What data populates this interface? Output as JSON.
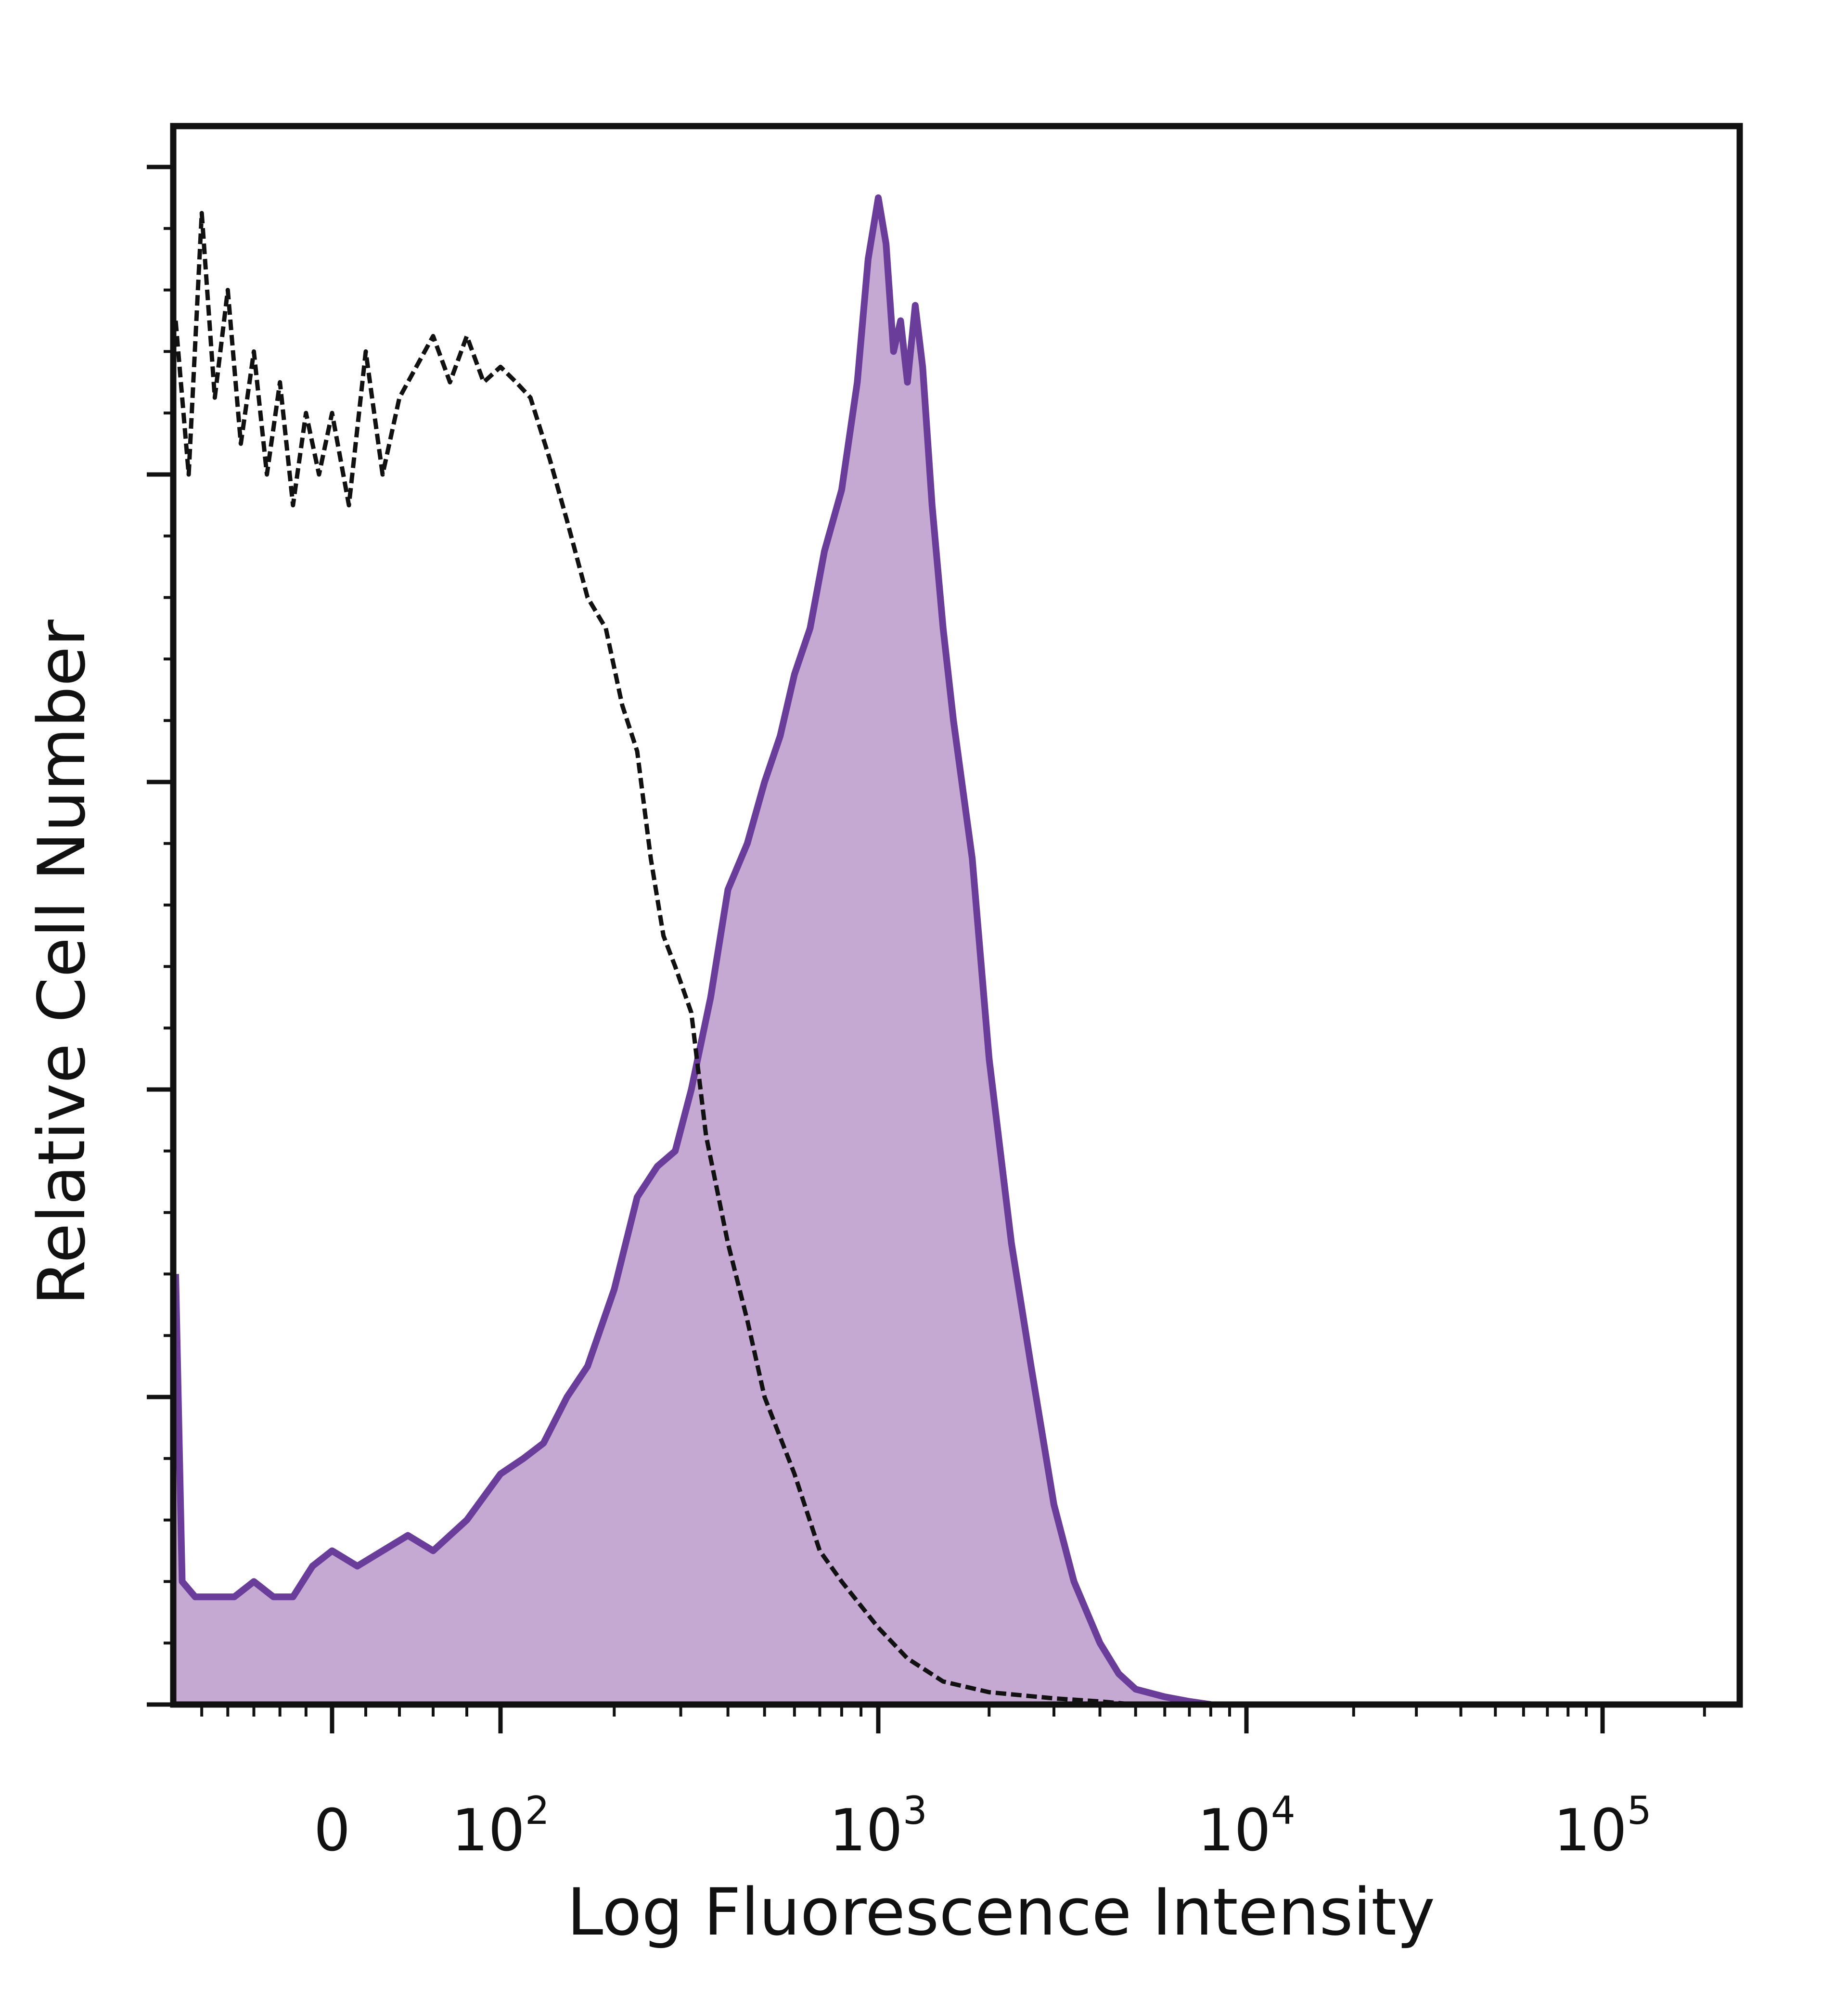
{
  "chart_data": {
    "type": "area",
    "title": "",
    "xlabel": "Log Fluorescence Intensity",
    "ylabel": "Relative Cell Number",
    "xscale": "biexponential (log)",
    "xlim": [
      -120,
      250000
    ],
    "ylim": [
      0,
      100
    ],
    "grid": false,
    "legend": "none",
    "x_ticks": [
      {
        "value": 0,
        "base": "0",
        "exp": ""
      },
      {
        "value": 100,
        "base": "10",
        "exp": "2"
      },
      {
        "value": 1000,
        "base": "10",
        "exp": "3"
      },
      {
        "value": 10000,
        "base": "10",
        "exp": "4"
      },
      {
        "value": 100000,
        "base": "10",
        "exp": "5"
      }
    ],
    "series": [
      {
        "style": "filled",
        "color": "#6a3d9a",
        "fill": "#c5a9d3",
        "x": [
          -120,
          -115,
          -105,
          -90,
          -75,
          -60,
          -45,
          -30,
          -15,
          0,
          15,
          30,
          45,
          60,
          80,
          100,
          115,
          130,
          150,
          170,
          200,
          230,
          260,
          290,
          320,
          360,
          400,
          450,
          500,
          550,
          600,
          660,
          720,
          800,
          880,
          940,
          1000,
          1050,
          1100,
          1150,
          1200,
          1260,
          1320,
          1400,
          1500,
          1600,
          1800,
          2000,
          2300,
          2600,
          3000,
          3400,
          4000,
          4500,
          5000,
          6000,
          7000,
          8000
        ],
        "y": [
          28,
          8,
          7,
          7,
          7,
          8,
          7,
          7,
          9,
          10,
          9,
          10,
          11,
          10,
          12,
          15,
          16,
          17,
          20,
          22,
          27,
          33,
          35,
          36,
          40,
          46,
          53,
          56,
          60,
          63,
          67,
          70,
          75,
          79,
          86,
          94,
          98,
          95,
          88,
          90,
          86,
          91,
          87,
          78,
          70,
          64,
          55,
          42,
          30,
          22,
          13,
          8,
          4,
          2,
          1,
          0.5,
          0.2,
          0
        ]
      },
      {
        "style": "dashed",
        "color": "#111111",
        "x": [
          -120,
          -110,
          -100,
          -90,
          -80,
          -70,
          -60,
          -50,
          -40,
          -30,
          -20,
          -10,
          0,
          10,
          20,
          30,
          40,
          50,
          60,
          70,
          80,
          90,
          100,
          110,
          120,
          135,
          150,
          170,
          190,
          210,
          230,
          250,
          270,
          290,
          320,
          350,
          400,
          450,
          500,
          600,
          700,
          800,
          1000,
          1200,
          1500,
          2000,
          3000,
          4000,
          5000
        ],
        "y": [
          90,
          80,
          97,
          85,
          92,
          82,
          88,
          80,
          86,
          78,
          84,
          80,
          84,
          78,
          88,
          80,
          85,
          87,
          89,
          86,
          89,
          86,
          87,
          86,
          85,
          81,
          77,
          72,
          70,
          65,
          62,
          55,
          50,
          48,
          45,
          37,
          30,
          25,
          20,
          15,
          10,
          8,
          5,
          3,
          1.5,
          0.8,
          0.4,
          0.2,
          0
        ]
      }
    ]
  }
}
